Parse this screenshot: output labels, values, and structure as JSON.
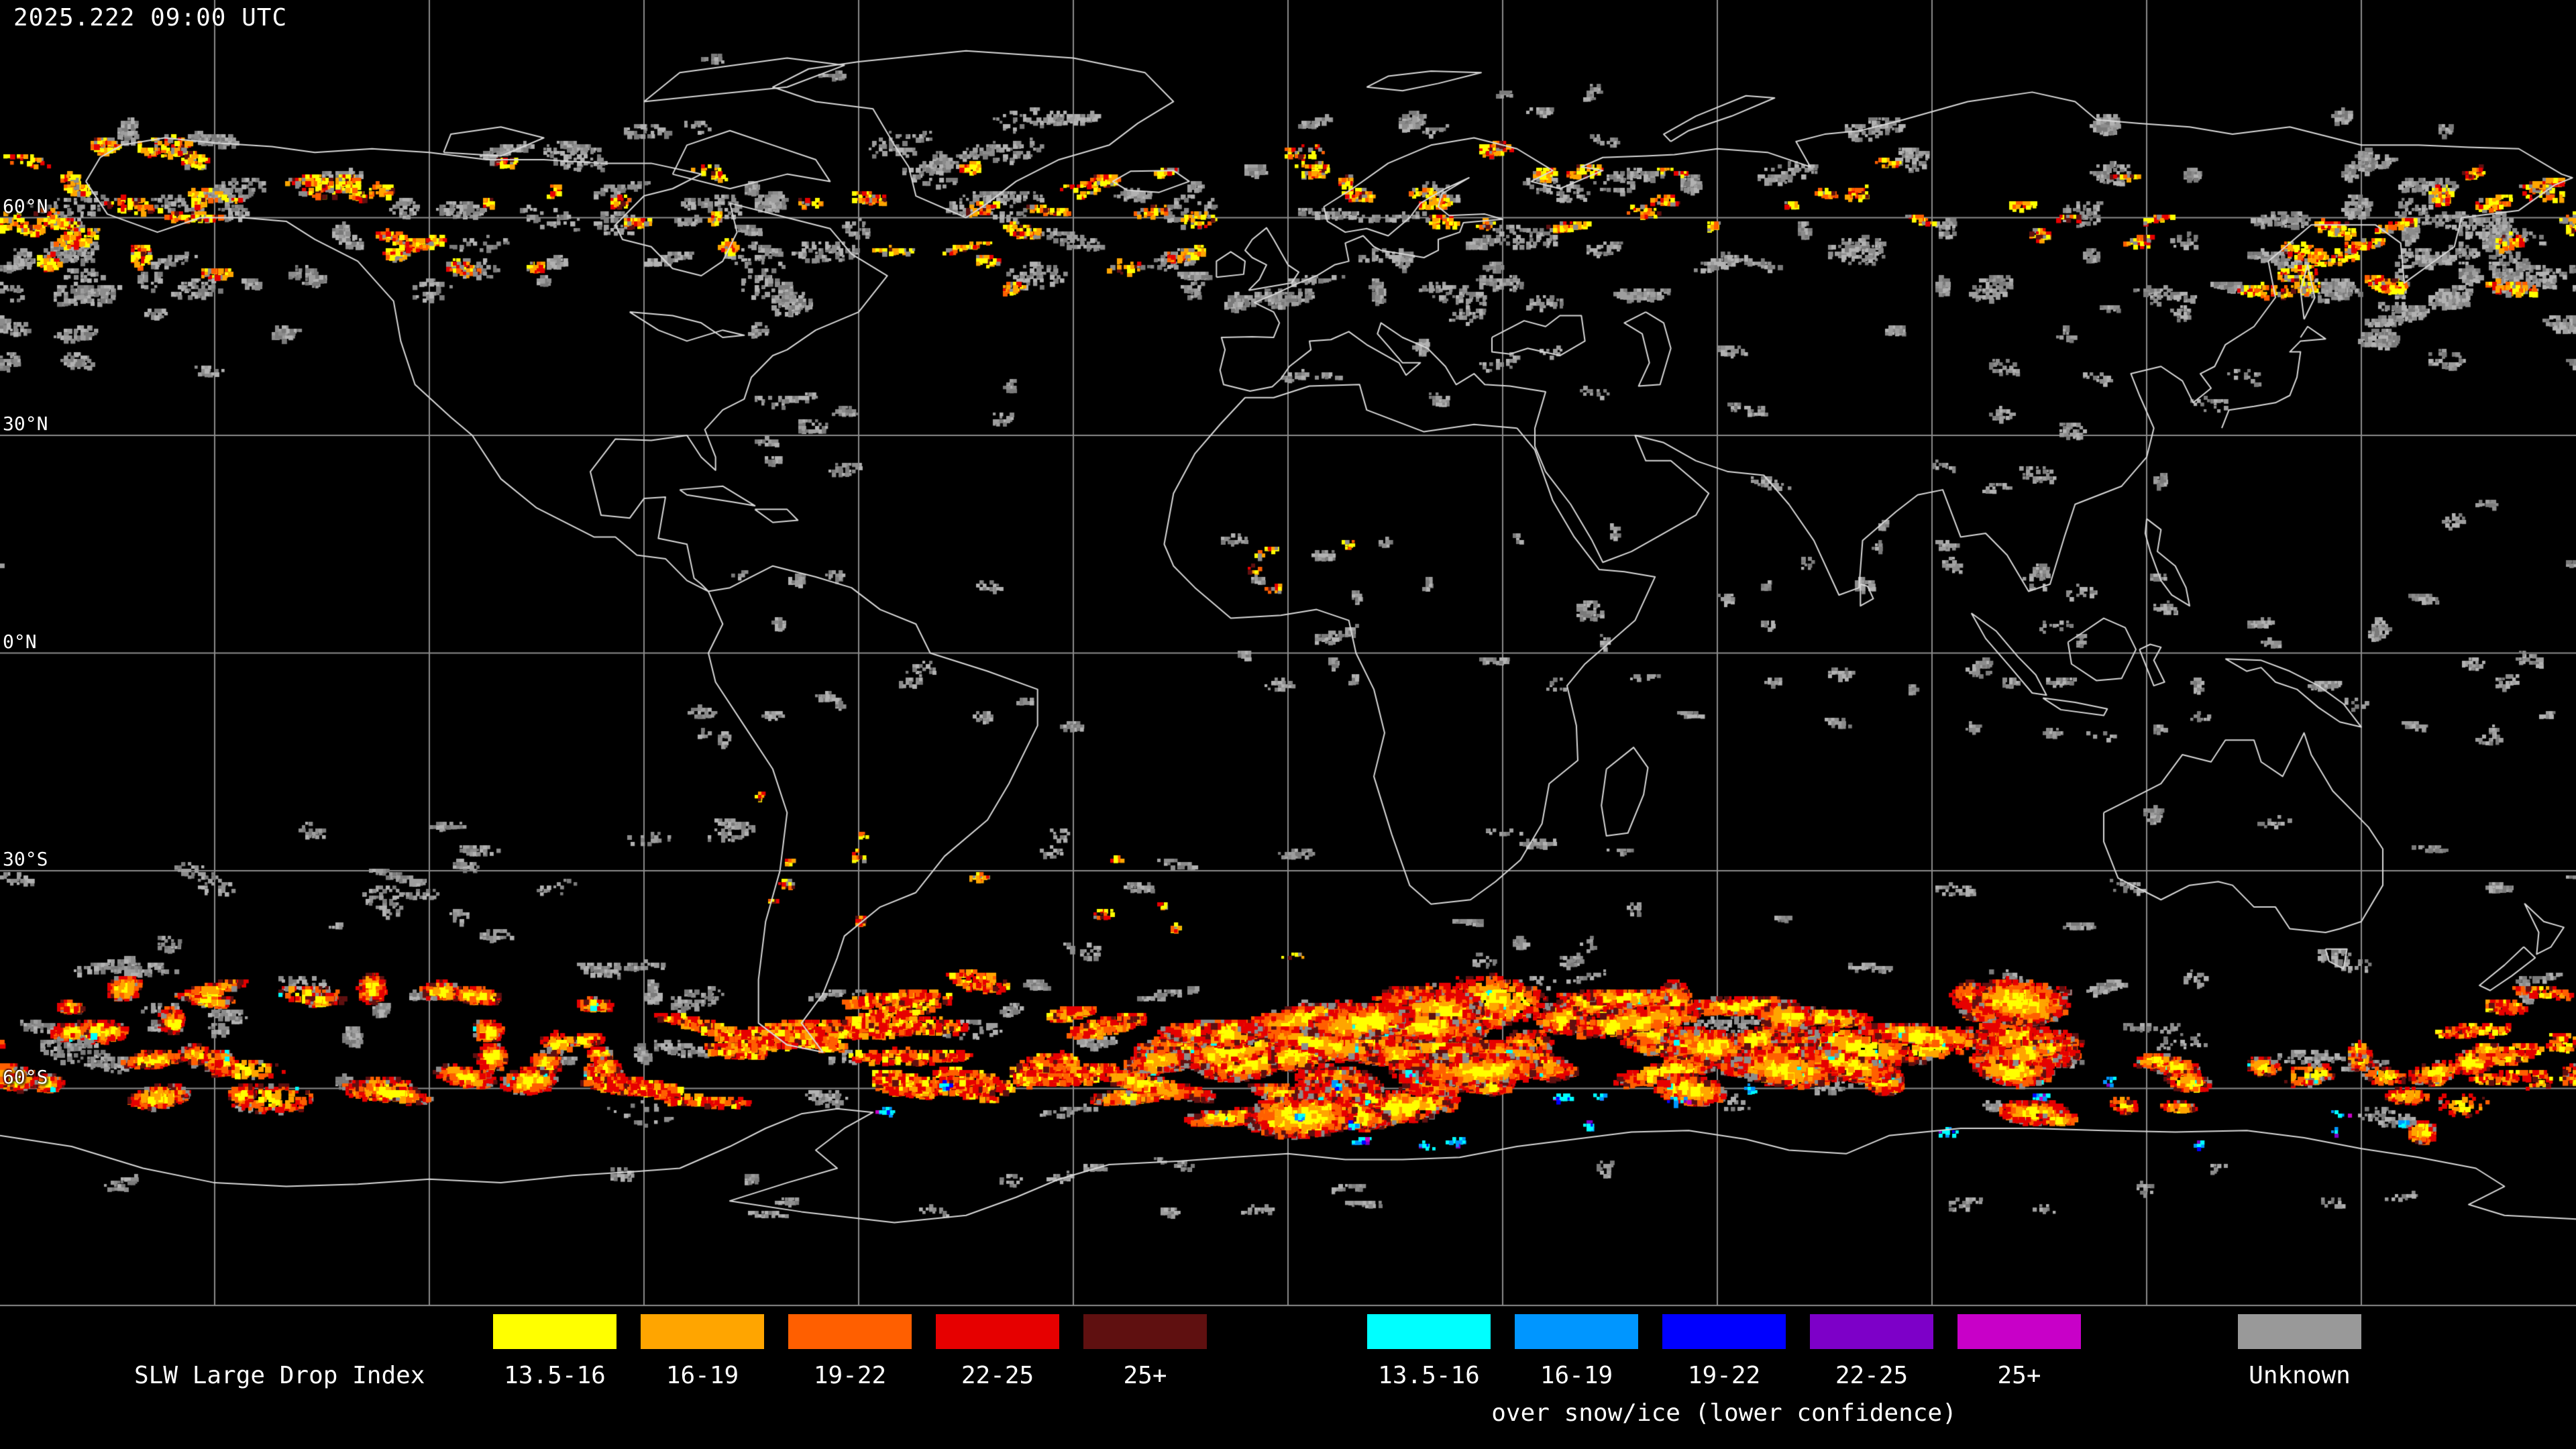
{
  "header": {
    "timestamp": "2025.222 09:00 UTC"
  },
  "map": {
    "lat_labels": [
      "60°N",
      "30°N",
      "0°N",
      "30°S",
      "60°S"
    ],
    "background": "#000000",
    "grid_color": "#8c8c8c",
    "coast_color": "#dadada"
  },
  "legend": {
    "title": "SLW Large Drop Index",
    "primary": [
      {
        "label": "13.5-16",
        "color": "#ffff00"
      },
      {
        "label": "16-19",
        "color": "#ffa500"
      },
      {
        "label": "19-22",
        "color": "#ff5f00"
      },
      {
        "label": "22-25",
        "color": "#e60000"
      },
      {
        "label": "25+",
        "color": "#5f1010"
      }
    ],
    "snow_ice": [
      {
        "label": "13.5-16",
        "color": "#00ffff"
      },
      {
        "label": "16-19",
        "color": "#0096ff"
      },
      {
        "label": "19-22",
        "color": "#0000ff"
      },
      {
        "label": "22-25",
        "color": "#7d00c8"
      },
      {
        "label": "25+",
        "color": "#c800c8"
      }
    ],
    "snow_ice_caption": "over snow/ice (lower confidence)",
    "unknown": {
      "label": "Unknown",
      "color": "#999999"
    }
  }
}
